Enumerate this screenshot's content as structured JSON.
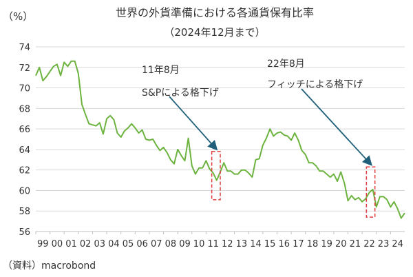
{
  "chart_data": {
    "type": "line",
    "title": "世界の外貨準備における各通貨保有比率",
    "subtitle": "（2024年12月まで）",
    "unit_label": "（%）",
    "source": "（資料）macrobond",
    "ylim": [
      56,
      74
    ],
    "yticks": [
      56,
      58,
      60,
      62,
      64,
      66,
      68,
      70,
      72,
      74
    ],
    "xlim": [
      1999.0,
      2025.0
    ],
    "xtick_labels": [
      "99",
      "00",
      "01",
      "02",
      "03",
      "04",
      "05",
      "06",
      "07",
      "08",
      "09",
      "10",
      "11",
      "12",
      "13",
      "14",
      "15",
      "16",
      "17",
      "18",
      "19",
      "20",
      "21",
      "22",
      "23",
      "24"
    ],
    "grid": "horizontal",
    "line_color": "#6cb33f",
    "annotation_color": "#e23b3b",
    "arrow_color": "#1f5f7a",
    "annotations": [
      {
        "label_line1": "11年8月",
        "label_line2": "S&Pによる格下げ",
        "x0": 2011.4,
        "x1": 2012.0,
        "y0": 59.1,
        "y1": 63.8
      },
      {
        "label_line1": "22年8月",
        "label_line2": "フィッチによる格下げ",
        "x0": 2022.3,
        "x1": 2022.9,
        "y0": 57.4,
        "y1": 62.3
      }
    ],
    "series": [
      {
        "points": [
          [
            1999.0,
            71.2
          ],
          [
            1999.25,
            72.0
          ],
          [
            1999.5,
            70.7
          ],
          [
            1999.75,
            71.1
          ],
          [
            2000.0,
            71.6
          ],
          [
            2000.25,
            72.1
          ],
          [
            2000.5,
            72.3
          ],
          [
            2000.75,
            71.2
          ],
          [
            2001.0,
            72.5
          ],
          [
            2001.25,
            72.1
          ],
          [
            2001.5,
            72.6
          ],
          [
            2001.75,
            72.6
          ],
          [
            2002.0,
            71.4
          ],
          [
            2002.25,
            68.4
          ],
          [
            2002.5,
            67.4
          ],
          [
            2002.75,
            66.5
          ],
          [
            2003.0,
            66.4
          ],
          [
            2003.25,
            66.3
          ],
          [
            2003.5,
            66.6
          ],
          [
            2003.75,
            65.5
          ],
          [
            2004.0,
            67.0
          ],
          [
            2004.25,
            67.3
          ],
          [
            2004.5,
            66.9
          ],
          [
            2004.75,
            65.6
          ],
          [
            2005.0,
            65.2
          ],
          [
            2005.25,
            65.8
          ],
          [
            2005.5,
            66.1
          ],
          [
            2005.75,
            66.5
          ],
          [
            2006.0,
            66.1
          ],
          [
            2006.25,
            65.6
          ],
          [
            2006.5,
            65.9
          ],
          [
            2006.75,
            65.0
          ],
          [
            2007.0,
            64.9
          ],
          [
            2007.25,
            65.0
          ],
          [
            2007.5,
            64.4
          ],
          [
            2007.75,
            63.9
          ],
          [
            2008.0,
            64.2
          ],
          [
            2008.25,
            63.7
          ],
          [
            2008.5,
            63.0
          ],
          [
            2008.75,
            62.6
          ],
          [
            2009.0,
            64.0
          ],
          [
            2009.25,
            63.4
          ],
          [
            2009.5,
            62.9
          ],
          [
            2009.75,
            65.1
          ],
          [
            2010.0,
            62.4
          ],
          [
            2010.25,
            61.6
          ],
          [
            2010.5,
            62.2
          ],
          [
            2010.75,
            62.2
          ],
          [
            2011.0,
            62.9
          ],
          [
            2011.25,
            62.1
          ],
          [
            2011.5,
            61.7
          ],
          [
            2011.75,
            61.0
          ],
          [
            2012.0,
            61.8
          ],
          [
            2012.25,
            62.7
          ],
          [
            2012.5,
            61.9
          ],
          [
            2012.75,
            61.9
          ],
          [
            2013.0,
            61.6
          ],
          [
            2013.25,
            61.6
          ],
          [
            2013.5,
            62.0
          ],
          [
            2013.75,
            62.0
          ],
          [
            2014.0,
            61.7
          ],
          [
            2014.25,
            61.3
          ],
          [
            2014.5,
            63.0
          ],
          [
            2014.75,
            63.1
          ],
          [
            2015.0,
            64.4
          ],
          [
            2015.25,
            65.1
          ],
          [
            2015.5,
            66.0
          ],
          [
            2015.75,
            65.3
          ],
          [
            2016.0,
            65.6
          ],
          [
            2016.25,
            65.7
          ],
          [
            2016.5,
            65.4
          ],
          [
            2016.75,
            65.3
          ],
          [
            2017.0,
            64.9
          ],
          [
            2017.25,
            65.6
          ],
          [
            2017.5,
            64.9
          ],
          [
            2017.75,
            63.9
          ],
          [
            2018.0,
            63.5
          ],
          [
            2018.25,
            62.7
          ],
          [
            2018.5,
            62.7
          ],
          [
            2018.75,
            62.4
          ],
          [
            2019.0,
            61.9
          ],
          [
            2019.25,
            61.9
          ],
          [
            2019.5,
            61.6
          ],
          [
            2019.75,
            61.3
          ],
          [
            2020.0,
            61.6
          ],
          [
            2020.25,
            60.9
          ],
          [
            2020.5,
            61.8
          ],
          [
            2020.75,
            60.7
          ],
          [
            2021.0,
            59.0
          ],
          [
            2021.25,
            59.5
          ],
          [
            2021.5,
            59.1
          ],
          [
            2021.75,
            59.3
          ],
          [
            2022.0,
            58.9
          ],
          [
            2022.25,
            59.2
          ],
          [
            2022.5,
            59.8
          ],
          [
            2022.75,
            60.1
          ],
          [
            2023.0,
            58.4
          ],
          [
            2023.25,
            59.4
          ],
          [
            2023.5,
            59.4
          ],
          [
            2023.75,
            59.1
          ],
          [
            2024.0,
            58.4
          ],
          [
            2024.25,
            58.9
          ],
          [
            2024.5,
            58.2
          ],
          [
            2024.75,
            57.3
          ],
          [
            2025.0,
            57.8
          ]
        ]
      }
    ]
  }
}
